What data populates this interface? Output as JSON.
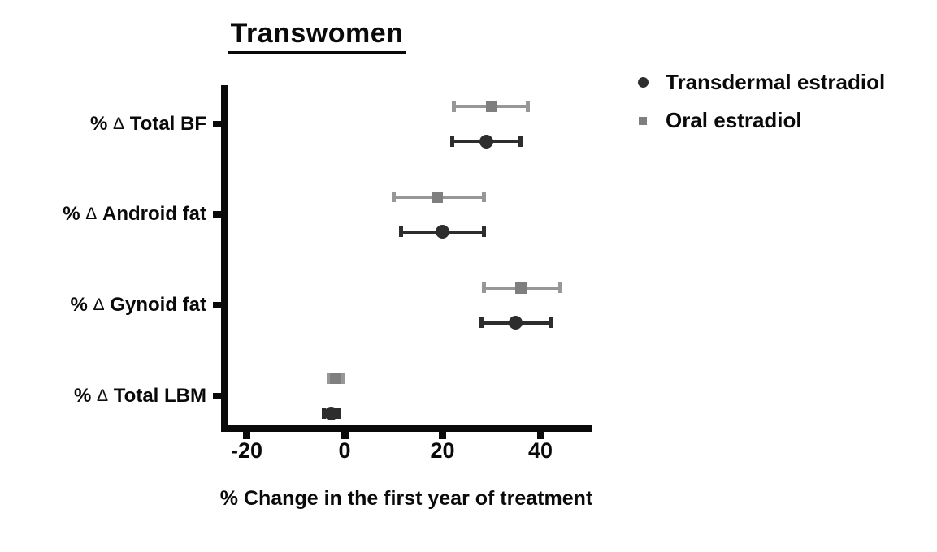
{
  "chart_data": {
    "type": "scatter",
    "subtype": "horizontal dot plot with error bars (forest style)",
    "title": "Transwomen",
    "xlabel": "% Change in the first year of treatment",
    "xlim": [
      -25,
      50
    ],
    "x_ticks": [
      -20,
      0,
      20,
      40
    ],
    "grid": false,
    "legend_position": "right-top",
    "categories": [
      "% Δ Total BF",
      "% Δ Android fat",
      "% Δ Gynoid fat",
      "% Δ Total LBM"
    ],
    "series": [
      {
        "name": "Transdermal estradiol",
        "marker": "circle",
        "color": "#2d2d2d",
        "line_color": "#2d2d2d",
        "points": [
          {
            "category": "% Δ Total BF",
            "mean": 29,
            "lo": 22,
            "hi": 36
          },
          {
            "category": "% Δ Android fat",
            "mean": 20,
            "lo": 11.5,
            "hi": 28.5
          },
          {
            "category": "% Δ Gynoid fat",
            "mean": 35,
            "lo": 28,
            "hi": 42
          },
          {
            "category": "% Δ Total LBM",
            "mean": -2.8,
            "lo": -4.3,
            "hi": -1.3
          }
        ]
      },
      {
        "name": "Oral estradiol",
        "marker": "square",
        "color": "#7f7f7f",
        "line_color": "#979797",
        "points": [
          {
            "category": "% Δ Total BF",
            "mean": 30,
            "lo": 22.4,
            "hi": 37.5
          },
          {
            "category": "% Δ Android fat",
            "mean": 19,
            "lo": 10,
            "hi": 28.5
          },
          {
            "category": "% Δ Gynoid fat",
            "mean": 36,
            "lo": 28.5,
            "hi": 44
          },
          {
            "category": "% Δ Total LBM",
            "mean": -1.8,
            "lo": -3.3,
            "hi": -0.3
          }
        ]
      }
    ]
  }
}
